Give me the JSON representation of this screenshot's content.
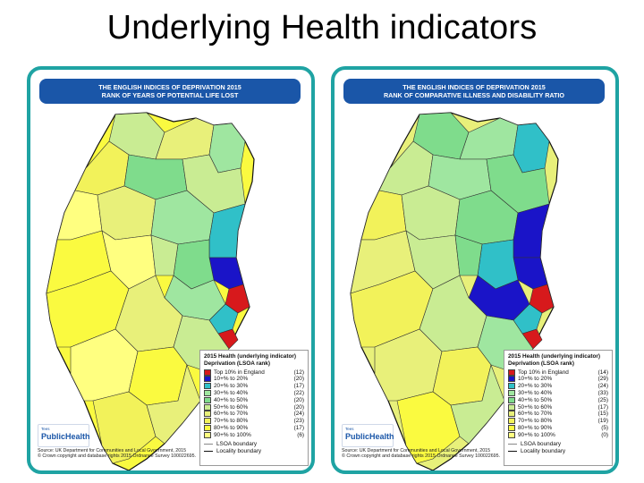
{
  "slide": {
    "title": "Underlying Health indicators"
  },
  "colors": {
    "card_border": "#1fa3a3",
    "header_bg": "#1a56a8",
    "boundary_dark": "#111111",
    "boundary_light": "#888888"
  },
  "legend_classes": [
    {
      "label": "Top 10% in England",
      "color": "#d7191c"
    },
    {
      "label": "10+% to   20%",
      "color": "#1a14c8"
    },
    {
      "label": "20+% to   30%",
      "color": "#30c0c8"
    },
    {
      "label": "30+% to   40%",
      "color": "#9fe6a0"
    },
    {
      "label": "40+% to   50%",
      "color": "#7fdc8c"
    },
    {
      "label": "50+% to   60%",
      "color": "#c9ec93"
    },
    {
      "label": "60+% to   70%",
      "color": "#e8f07a"
    },
    {
      "label": "70+% to   80%",
      "color": "#f2f25a"
    },
    {
      "label": "80+% to   90%",
      "color": "#fafa40"
    },
    {
      "label": "90+% to 100%",
      "color": "#ffff80"
    }
  ],
  "maps": [
    {
      "header_line1": "THE ENGLISH INDICES OF DEPRIVATION 2015",
      "header_line2": "RANK OF YEARS OF POTENTIAL LIFE LOST",
      "legend_title_line1": "2015 Health (underlying indicator)",
      "legend_title_line2": "Deprivation (LSOA rank)",
      "counts": [
        "(12)",
        "(20)",
        "(17)",
        "(22)",
        "(20)",
        "(20)",
        "(24)",
        "(23)",
        "(17)",
        "(6)"
      ],
      "lsoa_boundary_label": "LSOA boundary",
      "locality_boundary_label": "Locality boundary",
      "logo_mark": "Tees",
      "logo_text": "PublicHealth",
      "source_line1": "Source: UK Department for Communities and Local Gvoernment, 2015",
      "source_line2": "© Crown copyright and database rights 2015 Ordnance Survey 100022695."
    },
    {
      "header_line1": "THE ENGLISH INDICES OF DEPRIVATION 2015",
      "header_line2": "RANK OF COMPARATIVE ILLNESS AND DISABILITY RATIO",
      "legend_title_line1": "2015 Health (underlying indicator)",
      "legend_title_line2": "Deprivation (LSOA rank)",
      "counts": [
        "(14)",
        "(29)",
        "(24)",
        "(33)",
        "(25)",
        "(17)",
        "(15)",
        "(19)",
        "(5)",
        "(0)"
      ],
      "lsoa_boundary_label": "LSOA boundary",
      "locality_boundary_label": "Locality boundary",
      "logo_mark": "Tees",
      "logo_text": "PublicHealth",
      "source_line1": "Source: UK Department for Communities and Local Government, 2015",
      "source_line2": "© Crown copyright and database rights 2015 Ordnance Survey 100022695."
    }
  ]
}
